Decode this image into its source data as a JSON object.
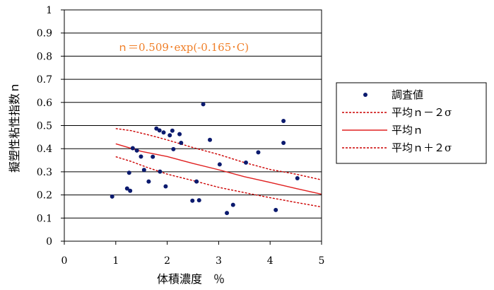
{
  "chart_data": {
    "type": "scatter",
    "xlabel": "体積濃度　％",
    "ylabel": "擬塑性粘性指数ｎ",
    "xlim": [
      0,
      5
    ],
    "ylim": [
      0,
      1
    ],
    "x_ticks": [
      "0",
      "1",
      "2",
      "3",
      "4",
      "5"
    ],
    "y_ticks": [
      "0",
      "0.1",
      "0.2",
      "0.3",
      "0.4",
      "0.5",
      "0.6",
      "0.7",
      "0.8",
      "0.9",
      "1"
    ],
    "grid": "horizontal",
    "legend_position": "right",
    "annotation": "ｎ＝0.509･exp(-0.165･C)",
    "annotation_color": "#f07f28",
    "series": [
      {
        "name": "調査値",
        "kind": "points",
        "color": "#0b1a6e",
        "points": [
          [
            0.93,
            0.193
          ],
          [
            1.22,
            0.228
          ],
          [
            1.26,
            0.296
          ],
          [
            1.28,
            0.218
          ],
          [
            1.33,
            0.402
          ],
          [
            1.41,
            0.392
          ],
          [
            1.49,
            0.366
          ],
          [
            1.55,
            0.308
          ],
          [
            1.64,
            0.258
          ],
          [
            1.72,
            0.365
          ],
          [
            1.79,
            0.487
          ],
          [
            1.85,
            0.479
          ],
          [
            1.86,
            0.301
          ],
          [
            1.93,
            0.47
          ],
          [
            1.97,
            0.237
          ],
          [
            2.05,
            0.458
          ],
          [
            2.1,
            0.478
          ],
          [
            2.12,
            0.398
          ],
          [
            2.24,
            0.463
          ],
          [
            2.27,
            0.425
          ],
          [
            2.49,
            0.175
          ],
          [
            2.57,
            0.258
          ],
          [
            2.62,
            0.177
          ],
          [
            2.7,
            0.592
          ],
          [
            2.83,
            0.438
          ],
          [
            3.02,
            0.332
          ],
          [
            3.16,
            0.122
          ],
          [
            3.28,
            0.157
          ],
          [
            3.53,
            0.34
          ],
          [
            3.77,
            0.384
          ],
          [
            4.11,
            0.135
          ],
          [
            4.26,
            0.52
          ],
          [
            4.26,
            0.425
          ],
          [
            4.53,
            0.272
          ]
        ]
      },
      {
        "name": "平均ｎ－２σ",
        "kind": "dashed",
        "color": "#cc0000",
        "points": [
          [
            1.0,
            0.365
          ],
          [
            1.3,
            0.345
          ],
          [
            1.6,
            0.32
          ],
          [
            2.0,
            0.29
          ],
          [
            2.5,
            0.262
          ],
          [
            3.0,
            0.233
          ],
          [
            3.5,
            0.21
          ],
          [
            4.0,
            0.188
          ],
          [
            4.5,
            0.168
          ],
          [
            5.0,
            0.148
          ]
        ]
      },
      {
        "name": "平均ｎ",
        "kind": "solid",
        "color": "#e02020",
        "points": [
          [
            1.0,
            0.421
          ],
          [
            1.5,
            0.388
          ],
          [
            2.0,
            0.366
          ],
          [
            2.5,
            0.336
          ],
          [
            3.0,
            0.309
          ],
          [
            3.5,
            0.279
          ],
          [
            4.0,
            0.254
          ],
          [
            4.5,
            0.228
          ],
          [
            5.0,
            0.203
          ]
        ]
      },
      {
        "name": "平均ｎ＋２σ",
        "kind": "dashed",
        "color": "#cc0000",
        "points": [
          [
            1.0,
            0.487
          ],
          [
            1.3,
            0.478
          ],
          [
            1.7,
            0.456
          ],
          [
            2.0,
            0.438
          ],
          [
            2.5,
            0.405
          ],
          [
            3.0,
            0.375
          ],
          [
            3.5,
            0.34
          ],
          [
            4.0,
            0.31
          ],
          [
            4.5,
            0.29
          ],
          [
            5.0,
            0.265
          ]
        ]
      }
    ]
  }
}
